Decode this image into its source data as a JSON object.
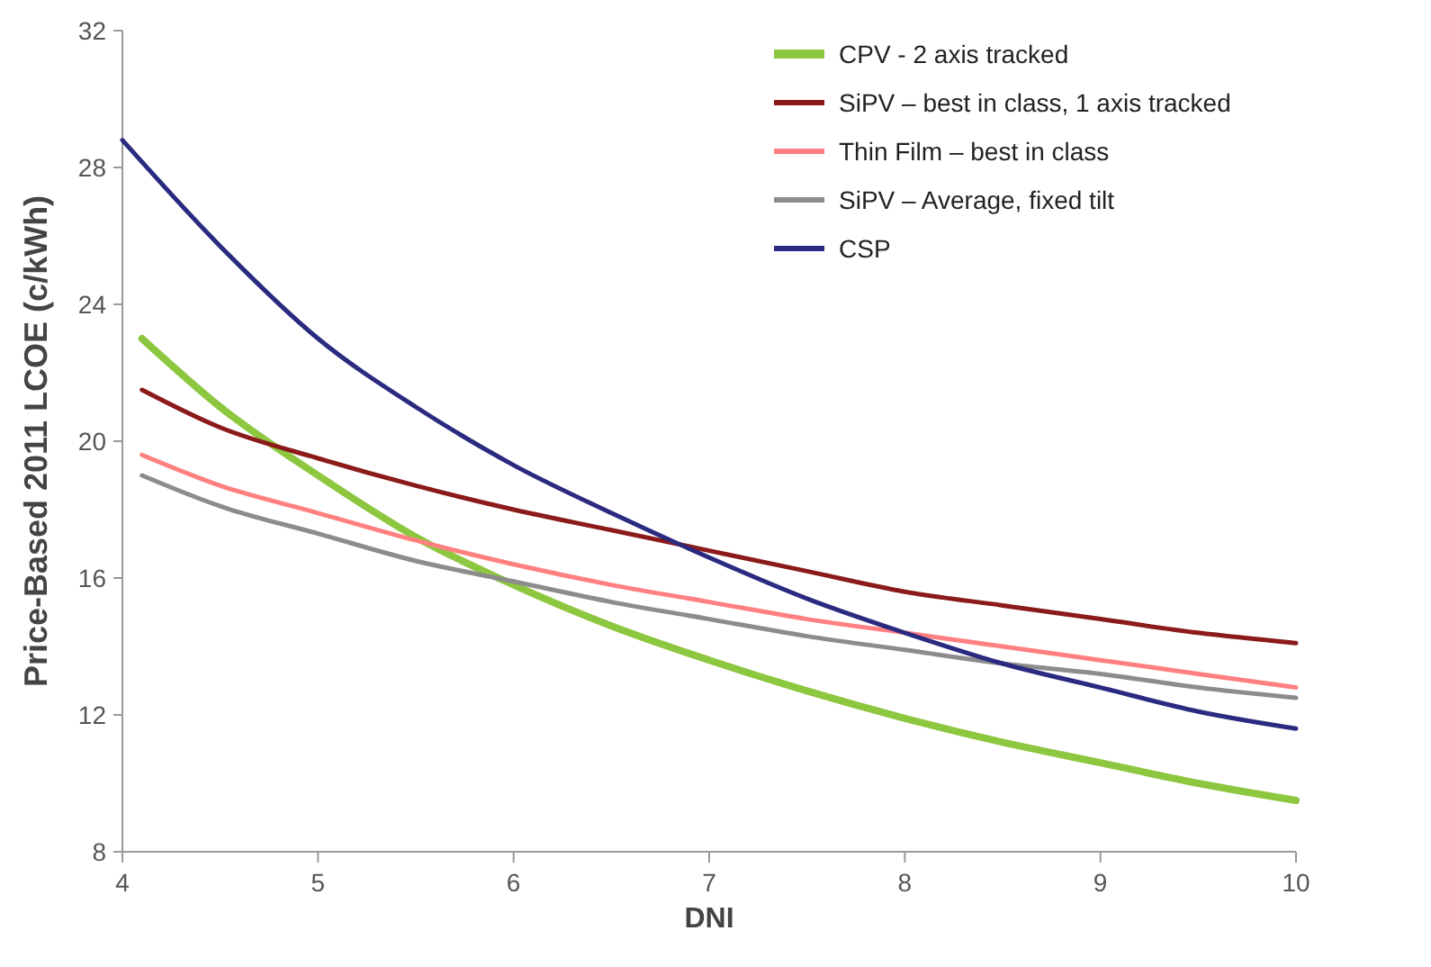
{
  "chart_data": {
    "type": "line",
    "xlabel": "DNI",
    "ylabel": "Price-Based 2011 LCOE (c/kWh)",
    "xlim": [
      4,
      10
    ],
    "xticks": [
      4,
      5,
      6,
      7,
      8,
      9,
      10
    ],
    "ylim": [
      8,
      32
    ],
    "yticks": [
      8,
      12,
      16,
      20,
      24,
      28,
      32
    ],
    "grid": false,
    "legend": "top right",
    "marker": "none",
    "line_style": "solid",
    "series": [
      {
        "name": "CPV  - 2 axis tracked",
        "color": "#8dc63f",
        "x": [
          4.1,
          4.5,
          5,
          5.5,
          6,
          6.5,
          7,
          7.5,
          8,
          8.5,
          9,
          9.5,
          10
        ],
        "values": [
          23.0,
          21.0,
          19.0,
          17.2,
          15.8,
          14.6,
          13.6,
          12.7,
          11.9,
          11.2,
          10.6,
          10.0,
          9.5
        ]
      },
      {
        "name": "SiPV – best in class, 1 axis tracked",
        "color": "#8b1a1a",
        "x": [
          4.1,
          4.5,
          5,
          5.5,
          6,
          6.5,
          7,
          7.5,
          8,
          8.5,
          9,
          9.5,
          10
        ],
        "values": [
          21.5,
          20.4,
          19.5,
          18.7,
          18.0,
          17.4,
          16.8,
          16.2,
          15.6,
          15.2,
          14.8,
          14.4,
          14.1
        ]
      },
      {
        "name": "Thin Film – best in class",
        "color": "#ff8080",
        "x": [
          4.1,
          4.5,
          5,
          5.5,
          6,
          6.5,
          7,
          7.5,
          8,
          8.5,
          9,
          9.5,
          10
        ],
        "values": [
          19.6,
          18.7,
          17.9,
          17.1,
          16.4,
          15.8,
          15.3,
          14.8,
          14.4,
          14.0,
          13.6,
          13.2,
          12.8
        ]
      },
      {
        "name": "SiPV – Average, fixed tilt",
        "color": "#8c8c8c",
        "x": [
          4.1,
          4.5,
          5,
          5.5,
          6,
          6.5,
          7,
          7.5,
          8,
          8.5,
          9,
          9.5,
          10
        ],
        "values": [
          19.0,
          18.1,
          17.3,
          16.5,
          15.9,
          15.3,
          14.8,
          14.3,
          13.9,
          13.5,
          13.2,
          12.8,
          12.5
        ]
      },
      {
        "name": "CSP",
        "color": "#2a2a80",
        "x": [
          4,
          4.5,
          5,
          5.5,
          6,
          6.5,
          7,
          7.5,
          8,
          8.5,
          9,
          9.5,
          10
        ],
        "values": [
          28.8,
          25.7,
          23.0,
          21.0,
          19.3,
          17.9,
          16.6,
          15.4,
          14.4,
          13.5,
          12.8,
          12.1,
          11.6
        ]
      }
    ]
  }
}
